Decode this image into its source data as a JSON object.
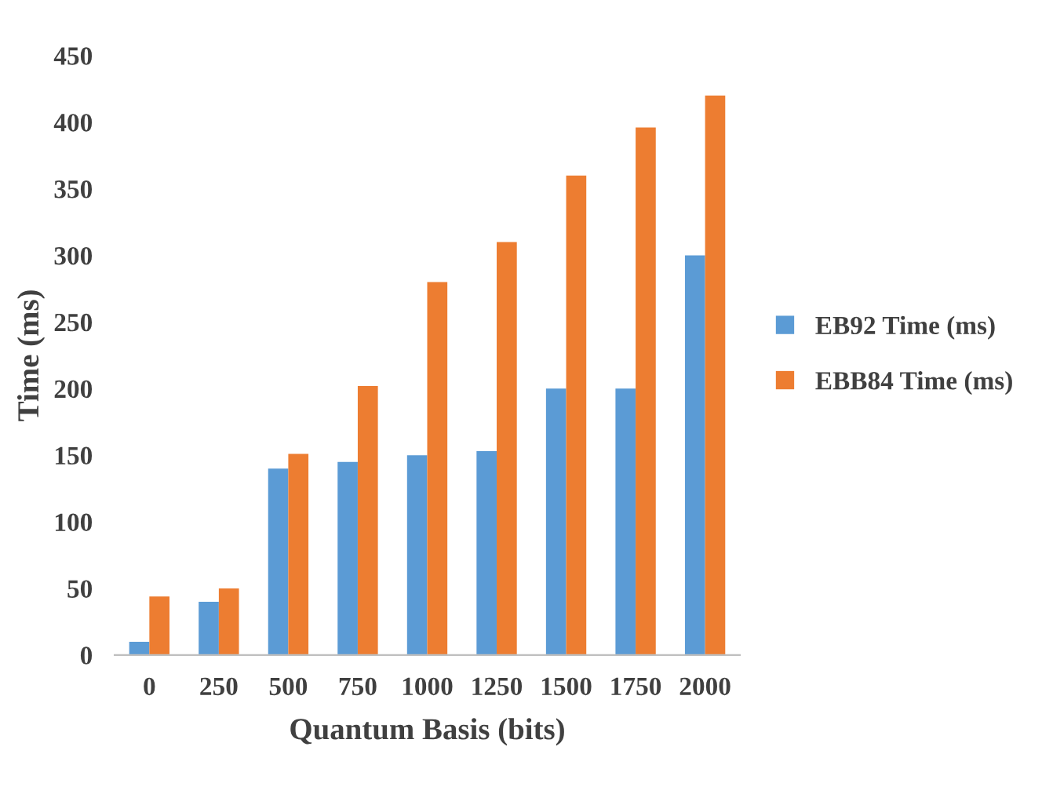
{
  "chart_data": {
    "type": "bar",
    "xlabel": "Quantum Basis (bits)",
    "ylabel": "Time (ms)",
    "categories": [
      "0",
      "250",
      "500",
      "750",
      "1000",
      "1250",
      "1500",
      "1750",
      "2000"
    ],
    "series": [
      {
        "name": "EB92 Time (ms)",
        "color": "#5b9bd5",
        "values": [
          10,
          40,
          140,
          145,
          150,
          153,
          200,
          200,
          300
        ]
      },
      {
        "name": "EBB84 Time (ms)",
        "color": "#ed7d31",
        "values": [
          44,
          50,
          151,
          202,
          280,
          310,
          360,
          396,
          420
        ]
      }
    ],
    "ylim": [
      0,
      450
    ],
    "yticks": [
      0,
      50,
      100,
      150,
      200,
      250,
      300,
      350,
      400,
      450
    ],
    "grid": false,
    "legend": "right"
  }
}
